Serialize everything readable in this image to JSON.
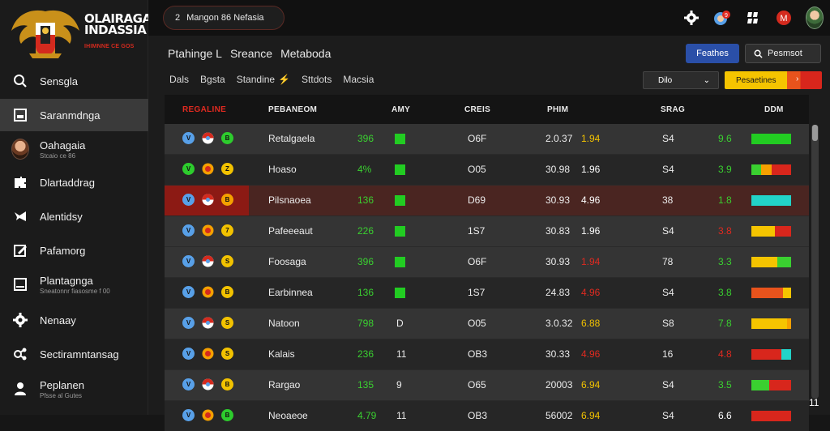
{
  "app": {
    "logo_title_1": "OLAIRAGAI",
    "logo_title_2": "INDASSIA",
    "logo_sub": "IHIMNNE CE GOS"
  },
  "topbar": {
    "search_number": "2",
    "search_text": "Mangon 86 Nefasia"
  },
  "sidebar": {
    "items": [
      {
        "label": "Sensgla",
        "icon": "search-icon"
      },
      {
        "label": "Saranmdnga",
        "icon": "document-icon",
        "active": true
      },
      {
        "label": "Oahagaia",
        "sub": "Stcaio ce 86",
        "icon": "avatar-icon"
      },
      {
        "label": "Dlartaddrag",
        "icon": "puzzle-icon"
      },
      {
        "label": "Alentidsy",
        "icon": "megaphone-icon"
      },
      {
        "label": "Pafamorg",
        "icon": "edit-icon"
      },
      {
        "label": "Plantagnga",
        "sub": "Sneatonnr fiasosme f 00",
        "icon": "tablet-icon"
      },
      {
        "label": "Nenaay",
        "icon": "gear-icon"
      },
      {
        "label": "Sectiramntansag",
        "icon": "network-icon"
      },
      {
        "label": "Peplanen",
        "sub": "Pfsse al Gutes",
        "icon": "person-icon"
      }
    ]
  },
  "header": {
    "breadcrumb": [
      "Ptahinge L",
      "Sreance",
      "Metaboda"
    ],
    "btn_blue": "Feathes",
    "btn_search": "Pesmsot",
    "filters": [
      "Dals",
      "Bgsta",
      "Standine",
      "Sttdots",
      "Macsia"
    ],
    "dropdown_dark": "Dilo",
    "dropdown_yellow": "Pesaetines"
  },
  "table": {
    "columns": [
      "REGALINE",
      "PEBANEOM",
      "AMY",
      "CREIS",
      "PHIM",
      "SRAG",
      "DDM"
    ],
    "rows": [
      {
        "name": "Retalgaela",
        "pct": "396",
        "ein": "",
        "creis": "O6F",
        "phim": "2.0.37",
        "flag": "1.94",
        "flag_color": "#f2c200",
        "srag": "S4",
        "small": "9.6",
        "small_color": "#3ad030",
        "bar": [
          [
            "#22cc22",
            1
          ]
        ],
        "badges": [
          [
            "V",
            "#58a0e8"
          ],
          [
            "",
            ""
          ],
          [
            "B",
            "#2dcc2d"
          ]
        ],
        "style": "alt"
      },
      {
        "name": "Hoaso",
        "pct": "4%",
        "ein": "",
        "creis": "O05",
        "phim": "30.98",
        "flag": "1.96",
        "flag_color": "#ffffff",
        "srag": "S4",
        "small": "3.9",
        "small_color": "#3ad030",
        "bar": [
          [
            "#3ad030",
            0.25
          ],
          [
            "#f5a000",
            0.25
          ],
          [
            "#d8261c",
            0.5
          ]
        ],
        "badges": [
          [
            "V",
            "#2dcc2d"
          ],
          [
            "",
            ""
          ],
          [
            "Z",
            "#f2c200"
          ]
        ],
        "style": "dark"
      },
      {
        "name": "Pilsnaoea",
        "pct": "136",
        "ein": "",
        "creis": "D69",
        "phim": "30.93",
        "flag": "4.96",
        "flag_color": "#ffffff",
        "srag": "38",
        "small": "1.8",
        "small_color": "#3ad030",
        "bar": [
          [
            "#22d3c8",
            1
          ]
        ],
        "badges": [
          [
            "V",
            "#58a0e8"
          ],
          [
            "",
            ""
          ],
          [
            "B",
            "#f5a000"
          ]
        ],
        "style": "hl"
      },
      {
        "name": "Pafeeeaut",
        "pct": "226",
        "ein": "",
        "creis": "1S7",
        "phim": "30.83",
        "flag": "1.96",
        "flag_color": "#ffffff",
        "srag": "S4",
        "small": "3.8",
        "small_color": "#e02a20",
        "bar": [
          [
            "#f5c400",
            0.6
          ],
          [
            "#d8261c",
            0.4
          ]
        ],
        "badges": [
          [
            "V",
            "#58a0e8"
          ],
          [
            "",
            ""
          ],
          [
            "7",
            "#f2c200"
          ]
        ],
        "style": "alt"
      },
      {
        "name": "Foosaga",
        "pct": "396",
        "ein": "",
        "creis": "O6F",
        "phim": "30.93",
        "flag": "1.94",
        "flag_color": "#e02a20",
        "srag": "78",
        "small": "3.3",
        "small_color": "#3ad030",
        "bar": [
          [
            "#f5c400",
            0.65
          ],
          [
            "#3ad030",
            0.35
          ]
        ],
        "badges": [
          [
            "V",
            "#58a0e8"
          ],
          [
            "",
            ""
          ],
          [
            "S",
            "#f2c200"
          ]
        ],
        "style": "alt"
      },
      {
        "name": "Earbinnea",
        "pct": "136",
        "ein": "",
        "creis": "1S7",
        "phim": "24.83",
        "flag": "4.96",
        "flag_color": "#e02a20",
        "srag": "S4",
        "small": "3.8",
        "small_color": "#3ad030",
        "bar": [
          [
            "#e8531c",
            0.8
          ],
          [
            "#f5c400",
            0.2
          ]
        ],
        "badges": [
          [
            "V",
            "#58a0e8"
          ],
          [
            "",
            ""
          ],
          [
            "B",
            "#f2c200"
          ]
        ],
        "style": "dark"
      },
      {
        "name": "Natoon",
        "pct": "798",
        "ein": "D",
        "creis": "O05",
        "phim": "3.0.32",
        "flag": "6.88",
        "flag_color": "#f2c200",
        "srag": "S8",
        "small": "7.8",
        "small_color": "#3ad030",
        "bar": [
          [
            "#f5c400",
            0.9
          ],
          [
            "#f5a000",
            0.1
          ]
        ],
        "badges": [
          [
            "V",
            "#58a0e8"
          ],
          [
            "",
            ""
          ],
          [
            "S",
            "#f2c200"
          ]
        ],
        "style": "alt"
      },
      {
        "name": "Kalais",
        "pct": "236",
        "ein": "11",
        "creis": "OB3",
        "phim": "30.33",
        "flag": "4.96",
        "flag_color": "#e02a20",
        "srag": "16",
        "small": "4.8",
        "small_color": "#e02a20",
        "bar": [
          [
            "#d8261c",
            0.75
          ],
          [
            "#22d3c8",
            0.25
          ]
        ],
        "badges": [
          [
            "V",
            "#58a0e8"
          ],
          [
            "",
            ""
          ],
          [
            "S",
            "#f2c200"
          ]
        ],
        "style": "dark"
      },
      {
        "name": "Rargao",
        "pct": "135",
        "ein": "9",
        "creis": "O65",
        "phim": "20003",
        "flag": "6.94",
        "flag_color": "#f2c200",
        "srag": "S4",
        "small": "3.5",
        "small_color": "#3ad030",
        "bar": [
          [
            "#3ad030",
            0.45
          ],
          [
            "#d8261c",
            0.55
          ]
        ],
        "badges": [
          [
            "V",
            "#58a0e8"
          ],
          [
            "",
            ""
          ],
          [
            "B",
            "#f2c200"
          ]
        ],
        "style": "alt"
      },
      {
        "name": "Neoaeoe",
        "pct": "4.79",
        "ein": "11",
        "creis": "OB3",
        "phim": "56002",
        "flag": "6.94",
        "flag_color": "#f2c200",
        "srag": "S4",
        "small": "6.6",
        "small_color": "#ffffff",
        "bar": [
          [
            "#d8261c",
            1
          ]
        ],
        "badges": [
          [
            "V",
            "#58a0e8"
          ],
          [
            "",
            ""
          ],
          [
            "B",
            "#2dcc2d"
          ]
        ],
        "style": "dark"
      }
    ]
  },
  "scroll_number": "11",
  "colors": {
    "accent_red": "#d42a1e",
    "accent_blue": "#2a4fa8",
    "green": "#3ad030",
    "yellow": "#f5c400"
  }
}
